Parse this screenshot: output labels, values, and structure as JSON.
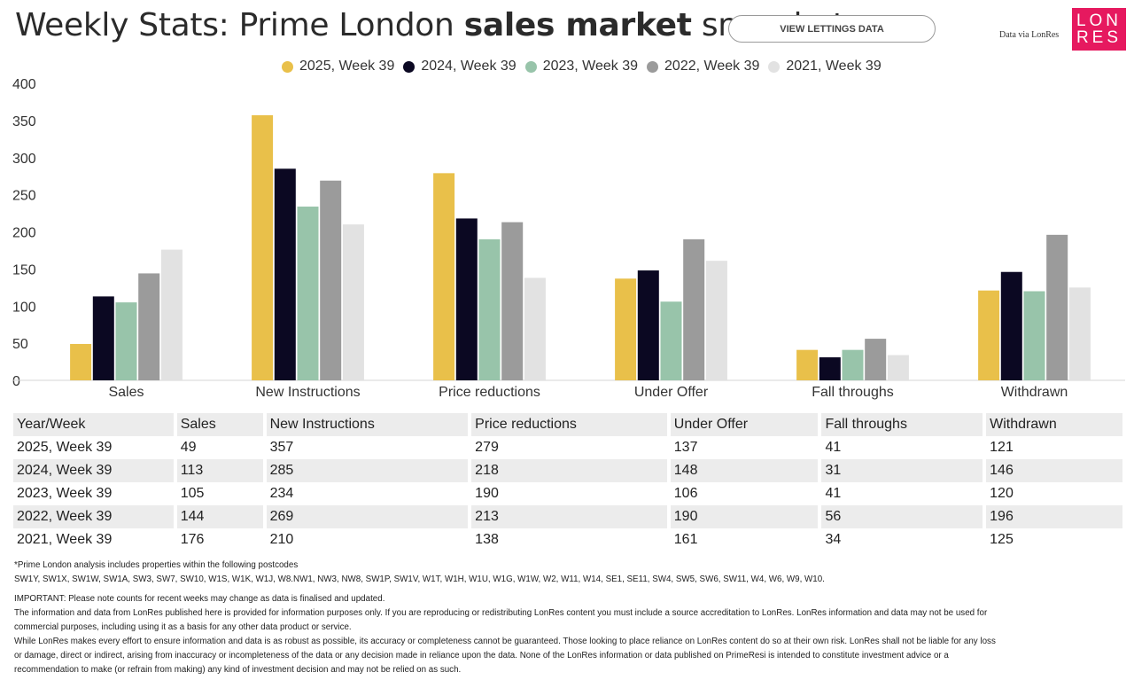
{
  "header": {
    "title_pre": "Weekly Stats: Prime London ",
    "title_bold": "sales market",
    "title_post": " snapshot",
    "lettings_button": "VIEW LETTINGS DATA",
    "credit": "Data via LonRes",
    "logo_line1": "LON",
    "logo_line2": "RES",
    "logo_color": "#e6195f"
  },
  "chart_data": {
    "type": "bar",
    "title": "Weekly Stats: Prime London sales market snapshot",
    "xlabel": "",
    "ylabel": "",
    "ylim": [
      0,
      400
    ],
    "yticks": [
      0,
      50,
      100,
      150,
      200,
      250,
      300,
      350,
      400
    ],
    "categories": [
      "Sales",
      "New Instructions",
      "Price reductions",
      "Under Offer",
      "Fall throughs",
      "Withdrawn"
    ],
    "legend_position": "top",
    "series": [
      {
        "name": "2025, Week 39",
        "color": "#e9c04a",
        "values": [
          49,
          357,
          279,
          137,
          41,
          121
        ]
      },
      {
        "name": "2024, Week 39",
        "color": "#0b0822",
        "values": [
          113,
          285,
          218,
          148,
          31,
          146
        ]
      },
      {
        "name": "2023, Week 39",
        "color": "#98c4aa",
        "values": [
          105,
          234,
          190,
          106,
          41,
          120
        ]
      },
      {
        "name": "2022, Week 39",
        "color": "#9b9b9b",
        "values": [
          144,
          269,
          213,
          190,
          56,
          196
        ]
      },
      {
        "name": "2021, Week 39",
        "color": "#e2e2e2",
        "values": [
          176,
          210,
          138,
          161,
          34,
          125
        ]
      }
    ]
  },
  "table": {
    "corner": "Year/Week",
    "columns": [
      "Sales",
      "New Instructions",
      "Price reductions",
      "Under Offer",
      "Fall throughs",
      "Withdrawn"
    ],
    "rows": [
      {
        "label": "2025, Week 39",
        "cells": [
          "49",
          "357",
          "279",
          "137",
          "41",
          "121"
        ]
      },
      {
        "label": "2024, Week 39",
        "cells": [
          "113",
          "285",
          "218",
          "148",
          "31",
          "146"
        ]
      },
      {
        "label": "2023, Week 39",
        "cells": [
          "105",
          "234",
          "190",
          "106",
          "41",
          "120"
        ]
      },
      {
        "label": "2022, Week 39",
        "cells": [
          "144",
          "269",
          "213",
          "190",
          "56",
          "196"
        ]
      },
      {
        "label": "2021, Week 39",
        "cells": [
          "176",
          "210",
          "138",
          "161",
          "34",
          "125"
        ]
      }
    ]
  },
  "notes": {
    "postcodes_intro": "*Prime London analysis includes properties within the following postcodes",
    "postcodes": "SW1Y, SW1X, SW1W, SW1A, SW3, SW7, SW10, W1S, W1K, W1J, W8.NW1, NW3, NW8, SW1P, SW1V, W1T, W1H, W1U, W1G, W1W, W2, W11, W14, SE1, SE11, SW4, SW5, SW6, SW11, W4, W6, W9, W10.",
    "important": "IMPORTANT: Please note counts for recent weeks may change as data is finalised and updated.",
    "line1": "The information and data from LonRes published here is provided for information purposes only. If you are reproducing or redistributing LonRes content you must include a source accreditation to LonRes. LonRes information and data may not be used for",
    "line2": "commercial purposes, including using it as a basis for any other data product or service.",
    "line3": "While LonRes makes every effort to ensure information and data is as robust as possible, its accuracy or completeness cannot be guaranteed. Those looking to place reliance on LonRes content do so at their own risk. LonRes shall not be liable for any loss",
    "line4": "or damage, direct or indirect, arising from inaccuracy or incompleteness of the data or any decision made in reliance upon the data. None of the LonRes information or data published on PrimeResi is intended to constitute investment advice or a",
    "line5": "recommendation to make (or refrain from making) any kind of investment decision and may not be relied on as such."
  }
}
